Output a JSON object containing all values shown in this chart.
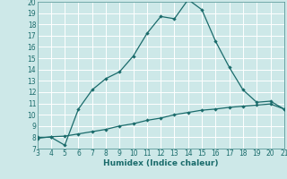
{
  "xlabel": "Humidex (Indice chaleur)",
  "bg_color": "#cde8e8",
  "grid_color": "#ffffff",
  "line_color": "#1a6b6b",
  "spine_color": "#5a9a9a",
  "xlim": [
    3,
    21
  ],
  "ylim": [
    7,
    20
  ],
  "xticks": [
    3,
    4,
    5,
    6,
    7,
    8,
    9,
    10,
    11,
    12,
    13,
    14,
    15,
    16,
    17,
    18,
    19,
    20,
    21
  ],
  "yticks": [
    7,
    8,
    9,
    10,
    11,
    12,
    13,
    14,
    15,
    16,
    17,
    18,
    19,
    20
  ],
  "curve1_x": [
    3,
    4,
    5,
    6,
    7,
    8,
    9,
    10,
    11,
    12,
    13,
    14,
    15,
    16,
    17,
    18,
    19,
    20,
    21
  ],
  "curve1_y": [
    8.0,
    8.0,
    7.3,
    10.5,
    12.2,
    13.2,
    13.8,
    15.2,
    17.2,
    18.7,
    18.5,
    20.2,
    19.3,
    16.5,
    14.2,
    12.2,
    11.1,
    11.2,
    10.5
  ],
  "curve2_x": [
    3,
    4,
    5,
    6,
    7,
    8,
    9,
    10,
    11,
    12,
    13,
    14,
    15,
    16,
    17,
    18,
    19,
    20,
    21
  ],
  "curve2_y": [
    7.9,
    8.05,
    8.1,
    8.3,
    8.5,
    8.7,
    9.0,
    9.2,
    9.5,
    9.7,
    10.0,
    10.2,
    10.4,
    10.5,
    10.65,
    10.75,
    10.85,
    10.95,
    10.5
  ],
  "xlabel_fontsize": 6.5,
  "tick_fontsize": 5.5,
  "linewidth": 0.9,
  "markersize": 2.2
}
